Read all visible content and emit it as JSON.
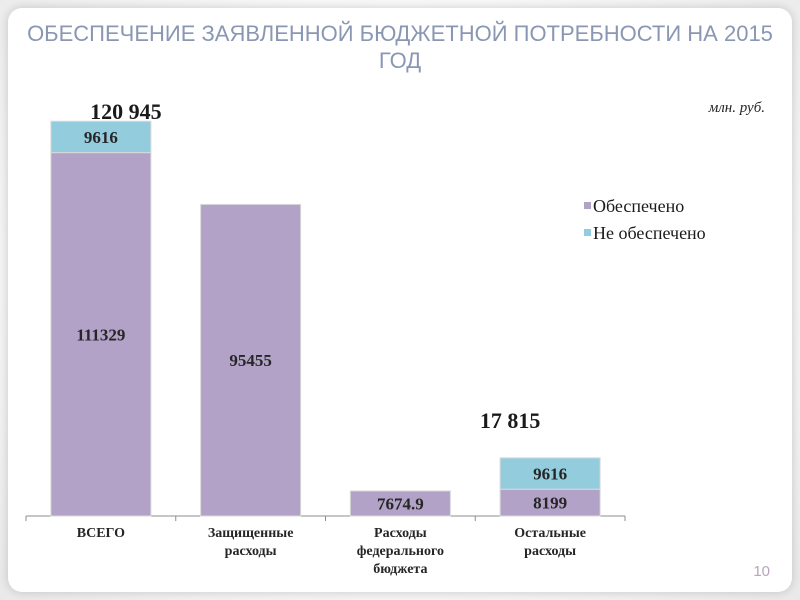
{
  "slide": {
    "title": "ОБЕСПЕЧЕНИЕ ЗАЯВЛЕННОЙ БЮДЖЕТНОЙ ПОТРЕБНОСТИ НА 2015 ГОД",
    "page_number": "10"
  },
  "colors": {
    "secured": "#b3a2c7",
    "unsecured": "#93cddd",
    "title": "#8a97b3"
  },
  "chart_data": {
    "type": "bar",
    "stacked": true,
    "unit_label": "млн. руб.",
    "categories": [
      [
        "ВСЕГО"
      ],
      [
        "Защищенные",
        "расходы"
      ],
      [
        "Расходы",
        "федерального",
        "бюджета"
      ],
      [
        "Остальные",
        "расходы"
      ]
    ],
    "series": [
      {
        "name": "Обеспечено",
        "values": [
          111329,
          95455,
          7674.9,
          8199
        ],
        "labels": [
          "111329",
          "95455",
          "7674.9",
          "8199"
        ]
      },
      {
        "name": "Не обеспечено",
        "values": [
          9616,
          0,
          0,
          9616
        ],
        "labels": [
          "9616",
          "",
          "",
          "9616"
        ]
      }
    ],
    "totals": [
      {
        "category_index": 0,
        "label": "120 945"
      },
      {
        "category_index": 3,
        "label": "17 815"
      }
    ],
    "ylim": [
      0,
      125000
    ],
    "legend": "right",
    "grid": false
  }
}
